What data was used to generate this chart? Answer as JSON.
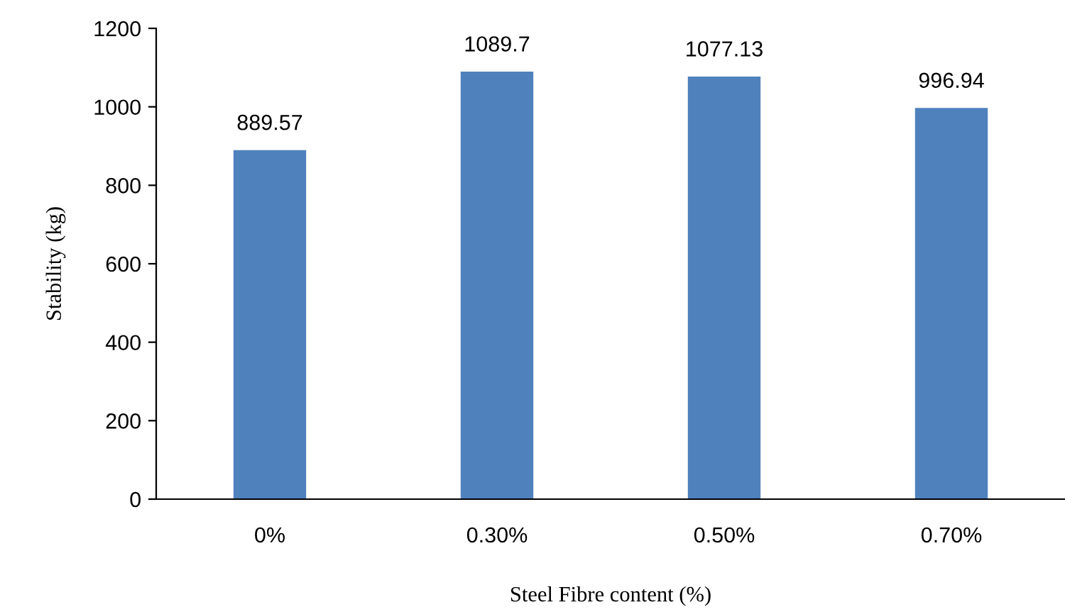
{
  "chart_data": {
    "type": "bar",
    "xlabel": "Steel Fibre content (%)",
    "ylabel": "Stability (kg)",
    "categories": [
      "0%",
      "0.30%",
      "0.50%",
      "0.70%"
    ],
    "values": [
      889.57,
      1089.7,
      1077.13,
      996.94
    ],
    "color": "#4f81bd",
    "ylim": [
      0,
      1200
    ],
    "yticks": [
      0,
      200,
      400,
      600,
      800,
      1000,
      1200
    ],
    "data_labels": true
  }
}
